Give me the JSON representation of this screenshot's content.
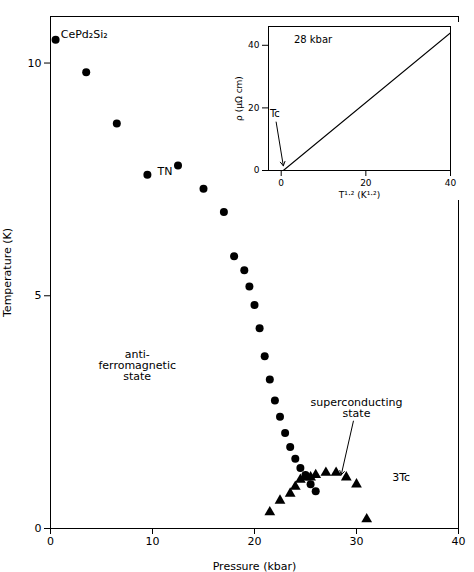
{
  "chart_data": [
    {
      "type": "scatter",
      "xlabel": "Pressure (kbar)",
      "ylabel": "Temperature (K)",
      "xlim": [
        0,
        40
      ],
      "ylim": [
        0,
        11
      ],
      "xticks": [
        0,
        10,
        20,
        30,
        40
      ],
      "yticks": [
        0,
        5,
        10
      ],
      "series": [
        {
          "marker": "circle",
          "color": "black",
          "x": [
            0.5,
            3.5,
            6.5,
            9.5,
            12.5,
            15.0,
            17.0,
            18.0,
            19.0,
            19.5,
            20.0,
            20.5,
            21.0,
            21.5,
            22.0,
            22.5,
            23.0,
            23.5,
            24.0,
            24.5,
            25.0,
            25.5,
            26.0
          ],
          "values": [
            10.5,
            9.8,
            8.7,
            7.6,
            7.8,
            7.3,
            6.8,
            5.85,
            5.55,
            5.2,
            4.8,
            4.3,
            3.7,
            3.2,
            2.75,
            2.4,
            2.05,
            1.75,
            1.5,
            1.3,
            1.15,
            0.95,
            0.8
          ]
        },
        {
          "marker": "triangle",
          "color": "black",
          "x": [
            21.5,
            22.5,
            23.5,
            24.0,
            24.5,
            25.0,
            25.5,
            26.0,
            27.0,
            28.0,
            29.0,
            30.0,
            31.0
          ],
          "values": [
            0.35,
            0.6,
            0.75,
            0.9,
            1.05,
            1.1,
            1.1,
            1.15,
            1.2,
            1.2,
            1.1,
            0.95,
            0.2
          ]
        }
      ],
      "annotations": [
        {
          "text": "CePd₂Si₂",
          "x": 1.0,
          "y": 10.7
        },
        {
          "text": "TN",
          "x": 10.5,
          "y": 7.6
        },
        {
          "text": "anti-\nferromagnetic\nstate",
          "x": 8.5,
          "y": 3.5
        },
        {
          "text": "superconducting\nstate",
          "x": 30.0,
          "y": 2.6,
          "arrow_x": 28.5,
          "arrow_y": 1.15
        },
        {
          "text": "3Tc",
          "x": 33.5,
          "y": 1.1
        }
      ]
    },
    {
      "type": "line",
      "xlabel": "T¹·² (K¹·²)",
      "ylabel": "ρ (μΩ cm)",
      "xlim": [
        -3,
        40
      ],
      "ylim": [
        0,
        46
      ],
      "xticks": [
        0,
        20,
        40
      ],
      "yticks": [
        0,
        20,
        40
      ],
      "series": [
        {
          "color": "black",
          "line_style": "solid",
          "x": [
            0.5,
            40
          ],
          "values": [
            0.0,
            44.0
          ]
        }
      ],
      "annotations": [
        {
          "text": "28 kbar",
          "x": 3,
          "y": 43
        },
        {
          "text": "Tc",
          "x": -1.5,
          "y": 18,
          "arrow_x": 0.5,
          "arrow_y": 1.5
        }
      ]
    }
  ]
}
